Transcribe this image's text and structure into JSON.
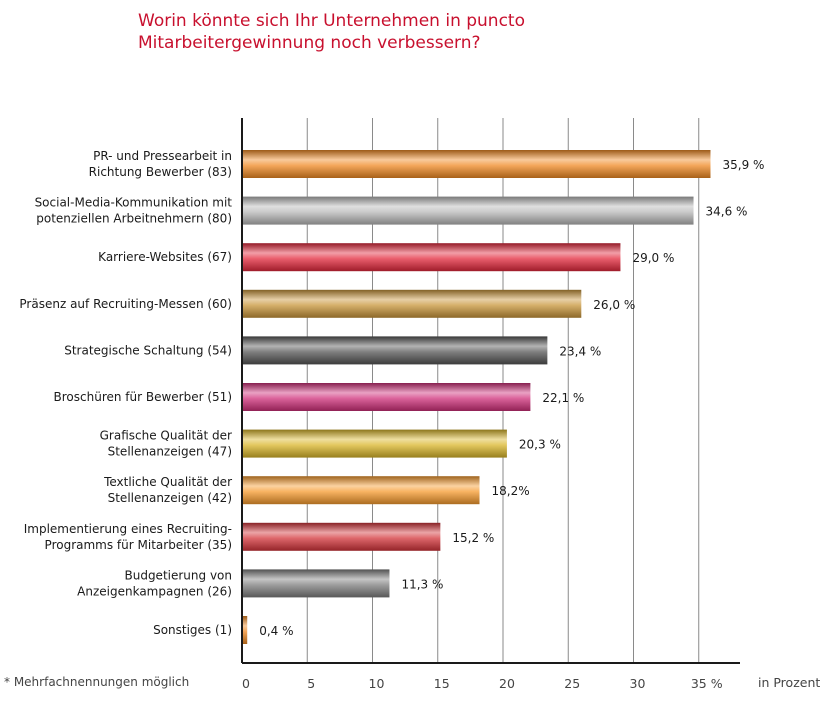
{
  "title_lines": [
    "Worin könnte sich Ihr Unternehmen in puncto",
    "Mitarbeitergewinnung noch verbessern?"
  ],
  "footnote": "* Mehrfachnennungen möglich",
  "unit_label": "in Prozent",
  "chart_data": {
    "type": "bar",
    "orientation": "horizontal",
    "categories": [
      [
        "PR- und Pressearbeit in",
        "Richtung Bewerber (83)"
      ],
      [
        "Social-Media-Kommunikation mit",
        "potenziellen Arbeitnehmern (80)"
      ],
      [
        "Karriere-Websites (67)"
      ],
      [
        "Präsenz auf Recruiting-Messen (60)"
      ],
      [
        "Strategische Schaltung (54)"
      ],
      [
        "Broschüren für Bewerber (51)"
      ],
      [
        "Grafische Qualität der",
        "Stellenanzeigen (47)"
      ],
      [
        "Textliche Qualität der",
        "Stellenanzeigen (42)"
      ],
      [
        "Implementierung eines Recruiting-",
        "Programms für Mitarbeiter (35)"
      ],
      [
        "Budgetierung von",
        "Anzeigenkampagnen (26)"
      ],
      [
        "Sonstiges (1)"
      ]
    ],
    "values": [
      35.9,
      34.6,
      29.0,
      26.0,
      23.4,
      22.1,
      20.3,
      18.2,
      15.2,
      11.3,
      0.4
    ],
    "value_labels": [
      "35,9 %",
      "34,6 %",
      "29,0 %",
      "26,0 %",
      "23,4 %",
      "22,1 %",
      "20,3 %",
      "18,2%",
      "15,2 %",
      "11,3 %",
      "0,4 %"
    ],
    "bar_colors": [
      "#f08a24",
      "#b8b8b8",
      "#e3283c",
      "#c8953a",
      "#555555",
      "#cf2f7a",
      "#d9b52a",
      "#f59a2e",
      "#d3343a",
      "#7d7d7d",
      "#f08a24"
    ],
    "x_ticks": [
      "0",
      "5",
      "10",
      "15",
      "20",
      "25",
      "30",
      "35  %"
    ],
    "xlim": [
      0,
      38
    ],
    "grid": true
  }
}
